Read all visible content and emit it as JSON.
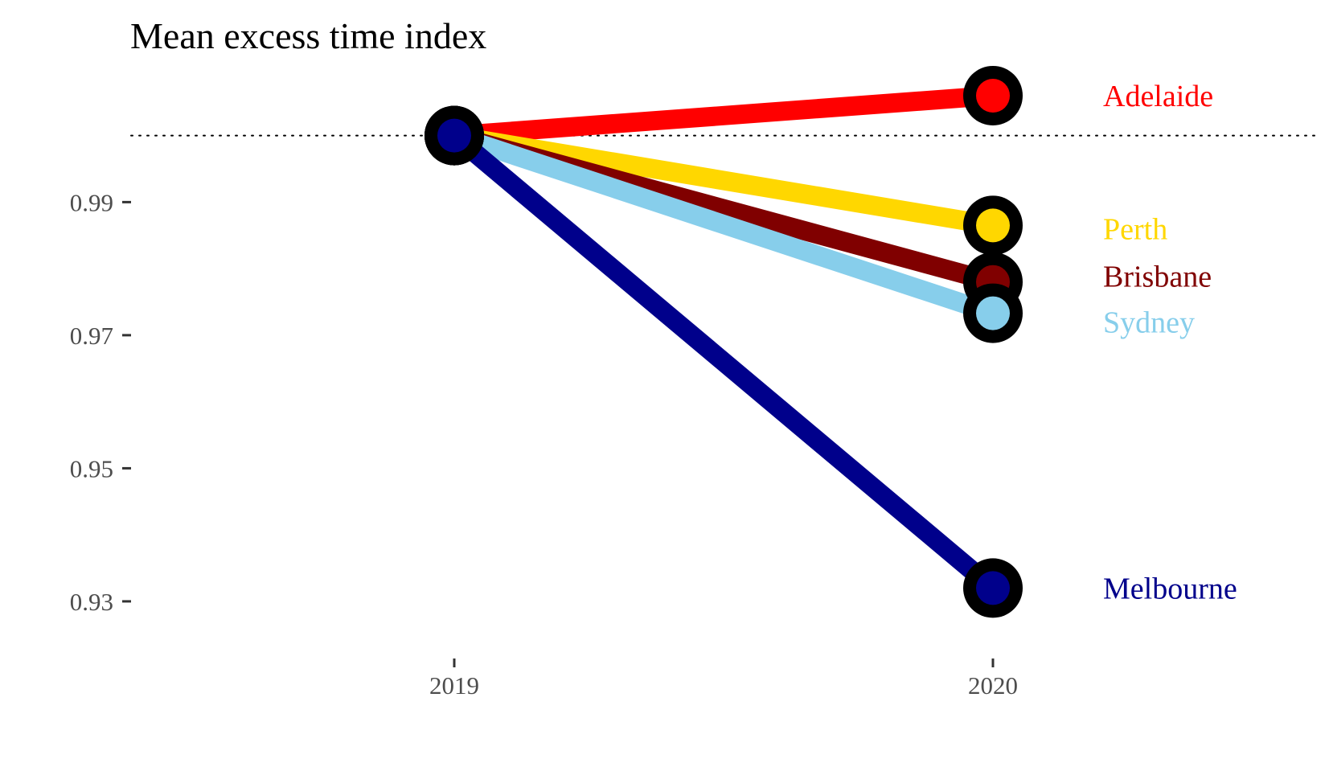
{
  "chart_data": {
    "type": "line",
    "title": "Mean excess time index",
    "xlabel": "",
    "ylabel": "",
    "x": [
      "2019",
      "2020"
    ],
    "y_ticks": [
      "0.93",
      "0.95",
      "0.97",
      "0.99"
    ],
    "ylim": [
      0.9225,
      1.0095
    ],
    "reference_line": {
      "y": 1.0,
      "style": "dotted"
    },
    "grid": false,
    "legend": "direct labels at right",
    "series": [
      {
        "name": "Adelaide",
        "values": [
          1.0,
          1.006
        ],
        "color": "#FF0000"
      },
      {
        "name": "Perth",
        "values": [
          1.0,
          0.9865
        ],
        "color": "#FFD700"
      },
      {
        "name": "Brisbane",
        "values": [
          1.0,
          0.978
        ],
        "color": "#800000"
      },
      {
        "name": "Sydney",
        "values": [
          1.0,
          0.9733
        ],
        "color": "#87CEEB"
      },
      {
        "name": "Melbourne",
        "values": [
          1.0,
          0.932
        ],
        "color": "#00008B"
      }
    ]
  }
}
